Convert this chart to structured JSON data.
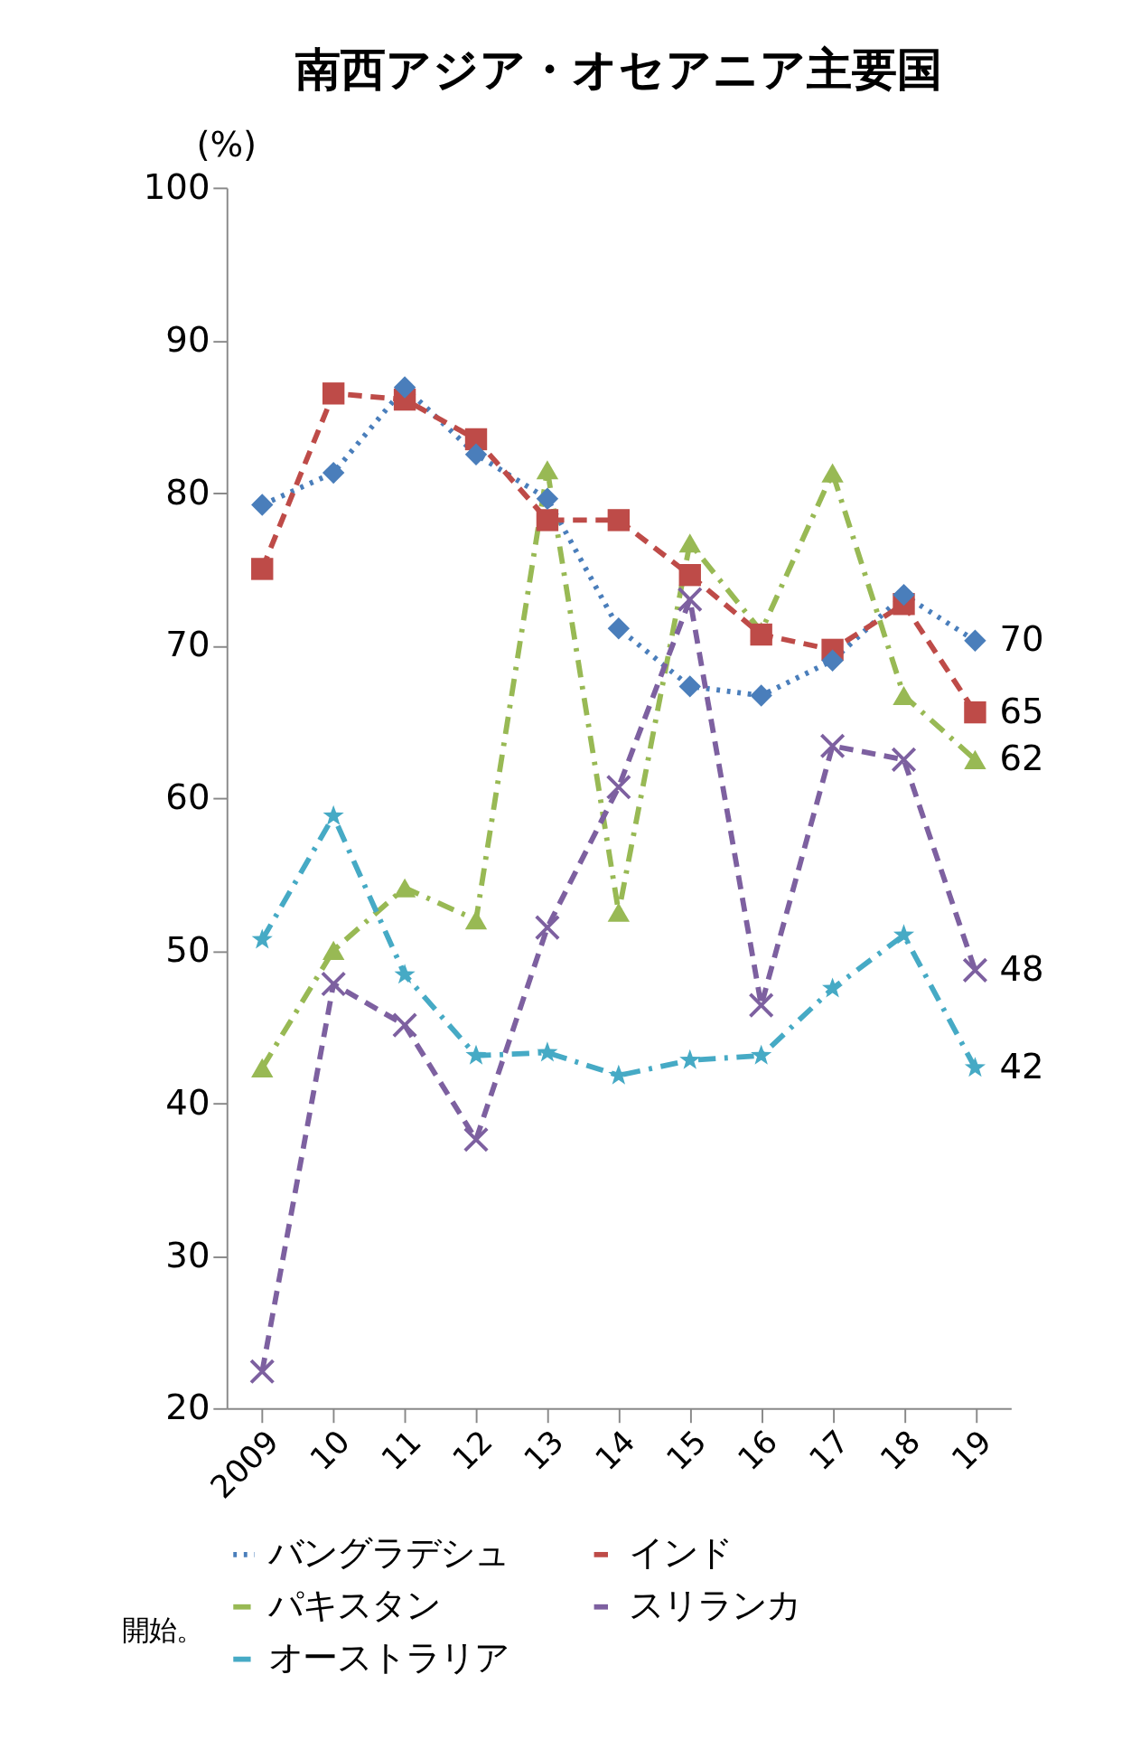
{
  "chart_data": {
    "type": "line",
    "title": "南西アジア・オセアニア主要国",
    "ylabel": "(%)",
    "categories": [
      "2009",
      "10",
      "11",
      "12",
      "13",
      "14",
      "15",
      "16",
      "17",
      "18",
      "19"
    ],
    "series": [
      {
        "name": "バングラデシュ",
        "color": "#4a7ebb",
        "marker": "diamond",
        "line_style": "dotted",
        "values": [
          79.2,
          81.3,
          86.9,
          82.5,
          79.6,
          71.1,
          67.3,
          66.7,
          69.0,
          73.3,
          70.3
        ]
      },
      {
        "name": "インド",
        "color": "#be4b48",
        "marker": "square",
        "line_style": "dashed",
        "values": [
          75.0,
          86.5,
          86.1,
          83.5,
          78.2,
          78.2,
          74.6,
          70.7,
          69.7,
          72.7,
          65.6
        ]
      },
      {
        "name": "パキスタン",
        "color": "#98b954",
        "marker": "triangle",
        "line_style": "dashdot",
        "values": [
          42.3,
          50.0,
          54.1,
          52.0,
          81.5,
          52.5,
          76.7,
          70.9,
          81.3,
          66.7,
          62.5
        ]
      },
      {
        "name": "スリランカ",
        "color": "#7d60a0",
        "marker": "cross",
        "line_style": "dashed",
        "values": [
          22.4,
          47.8,
          45.1,
          37.6,
          51.5,
          60.7,
          73.0,
          46.4,
          63.4,
          62.5,
          48.7
        ]
      },
      {
        "name": "オーストラリア",
        "color": "#46aac5",
        "marker": "star",
        "line_style": "dashdot",
        "values": [
          50.7,
          58.8,
          48.4,
          43.1,
          43.3,
          41.8,
          42.8,
          43.1,
          47.5,
          51.0,
          42.3
        ]
      }
    ],
    "ylim": [
      20,
      100
    ],
    "yticks": [
      20,
      30,
      40,
      50,
      60,
      70,
      80,
      90,
      100
    ],
    "grid": false,
    "legend": "bottom",
    "annotations": [
      {
        "text": "70",
        "x": "19",
        "y": 70.3
      },
      {
        "text": "65",
        "x": "19",
        "y": 65.6
      },
      {
        "text": "62",
        "x": "19",
        "y": 62.5
      },
      {
        "text": "48",
        "x": "19",
        "y": 48.7
      },
      {
        "text": "42",
        "x": "19",
        "y": 42.3
      },
      "開始。"
    ]
  }
}
